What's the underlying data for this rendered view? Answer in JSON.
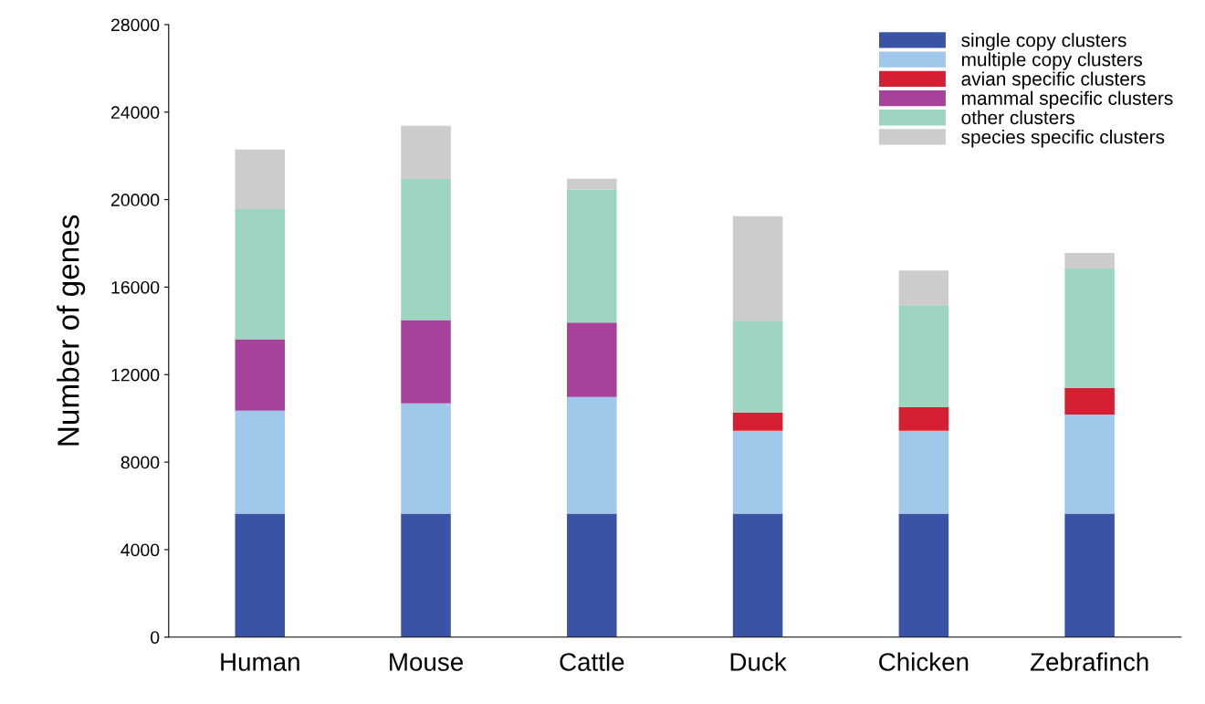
{
  "chart_data": {
    "type": "bar",
    "stacked": true,
    "ylabel": "Number of genes",
    "categories": [
      "Human",
      "Mouse",
      "Cattle",
      "Duck",
      "Chicken",
      "Zebrafinch"
    ],
    "series": [
      {
        "name": "single copy clusters",
        "color": "#3a53a4",
        "values": [
          5650,
          5650,
          5650,
          5650,
          5650,
          5650
        ]
      },
      {
        "name": "multiple copy clusters",
        "color": "#a0c8ea",
        "values": [
          4700,
          5040,
          5330,
          3780,
          3780,
          4530
        ]
      },
      {
        "name": "avian specific clusters",
        "color": "#d42032",
        "values": [
          null,
          null,
          null,
          840,
          1090,
          1220
        ]
      },
      {
        "name": "mammal specific clusters",
        "color": "#a6429a",
        "values": [
          3270,
          3810,
          3400,
          null,
          null,
          null
        ]
      },
      {
        "name": "other clusters",
        "color": "#9dd5c0",
        "values": [
          5950,
          6450,
          6080,
          4190,
          4650,
          5450
        ]
      },
      {
        "name": "species specific clusters",
        "color": "#cccccc",
        "values": [
          2720,
          2430,
          500,
          4780,
          1590,
          710
        ]
      }
    ],
    "ylim": [
      0,
      28000
    ],
    "yticks": [
      0,
      4000,
      8000,
      12000,
      16000,
      20000,
      24000,
      28000
    ],
    "grid": false,
    "legend": "top right"
  }
}
